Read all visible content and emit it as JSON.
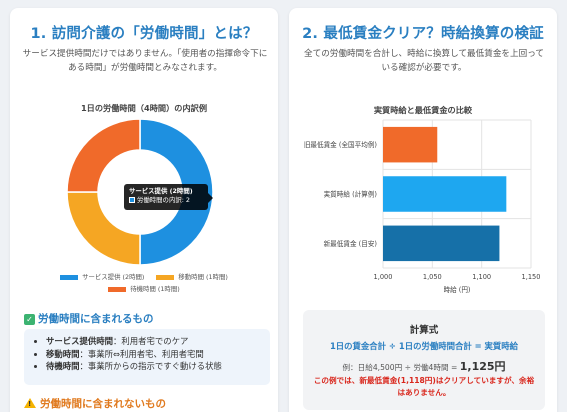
{
  "left": {
    "title": "1. 訪問介護の「労働時間」とは？",
    "desc": "サービス提供時間だけではありません。「使用者の指揮命令下にある時間」が労働時間とみなされます。",
    "donut": {
      "title": "1日の労働時間（4時間）の内訳例",
      "tooltip_title": "サービス提供 (2時間)",
      "tooltip_body": "労働時間の内訳: 2",
      "legend": [
        {
          "label": "サービス提供 (2時間)",
          "color": "#1e90e0"
        },
        {
          "label": "移動時間 (1時間)",
          "color": "#f5a623"
        },
        {
          "label": "待機時間 (1時間)",
          "color": "#f06a2a"
        }
      ]
    },
    "chart_data": {
      "type": "pie",
      "title": "1日の労働時間（4時間）の内訳例",
      "categories": [
        "サービス提供 (2時間)",
        "移動時間 (1時間)",
        "待機時間 (1時間)"
      ],
      "values": [
        2,
        1,
        1
      ],
      "colors": [
        "#1e90e0",
        "#f5a623",
        "#f06a2a"
      ],
      "donut": true
    },
    "included": {
      "heading": "労働時間に含まれるもの",
      "items": [
        {
          "term": "サービス提供時間",
          "desc": "：利用者宅でのケア"
        },
        {
          "term": "移動時間",
          "desc": "：事業所⇔利用者宅、利用者宅間"
        },
        {
          "term": "待機時間",
          "desc": "：事業所からの指示ですぐ動ける状態"
        }
      ]
    },
    "excluded": {
      "heading": "労働時間に含まれないもの"
    }
  },
  "right": {
    "title": "2. 最低賃金クリア？時給換算の検証",
    "desc": "全ての労働時間を合計し、時給に換算して最低賃金を上回っている確認が必要です。",
    "bar": {
      "title": "実質時給と最低賃金の比較",
      "xlabel": "時給 (円)",
      "ticks": [
        "1,000",
        "1,050",
        "1,100",
        "1,150"
      ]
    },
    "chart_data": {
      "type": "bar",
      "orientation": "horizontal",
      "title": "実質時給と最低賃金の比較",
      "categories": [
        "旧最低賃金 (全国平均例)",
        "実質時給 (計算例)",
        "新最低賃金 (目安)"
      ],
      "values": [
        1055,
        1125,
        1118
      ],
      "colors": [
        "#f06a2a",
        "#1ea7f0",
        "#1670a8"
      ],
      "xlabel": "時給 (円)",
      "xlim": [
        1000,
        1150
      ],
      "grid": true
    },
    "formula": {
      "title": "計算式",
      "main": "1日の賃金合計 ÷ 1日の労働時間合計 = 実質時給",
      "example_prefix": "例：日給4,500円 ÷ 労働4時間 = ",
      "example_result": "1,125円",
      "note": "この例では、新最低賃金(1,118円)はクリアしていますが、余裕はありません。"
    }
  }
}
